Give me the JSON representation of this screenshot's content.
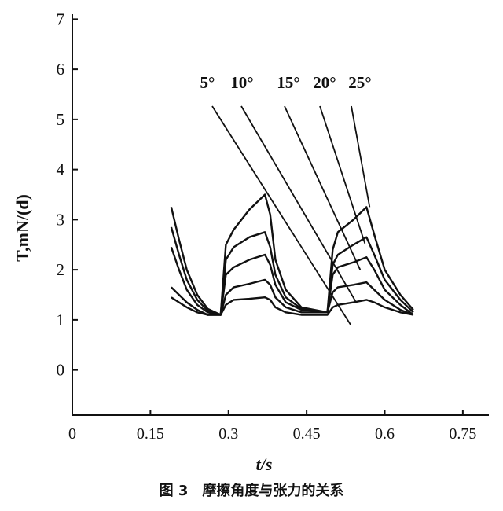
{
  "caption": "图 3　摩擦角度与张力的关系",
  "chart_data": {
    "type": "line",
    "xlabel": "t/s",
    "ylabel": "T,mN/(d)",
    "xlim": [
      0,
      0.8
    ],
    "ylim": [
      -0.9,
      7.1
    ],
    "xticks": [
      "0",
      "0.15",
      "0.3",
      "0.45",
      "0.6",
      "0.75"
    ],
    "xtick_values": [
      0,
      0.15,
      0.3,
      0.45,
      0.6,
      0.75
    ],
    "yticks": [
      "0",
      "1",
      "2",
      "3",
      "4",
      "5",
      "6",
      "7"
    ],
    "ytick_values": [
      0,
      1,
      2,
      3,
      4,
      5,
      6,
      7
    ],
    "annotations": [
      "5°",
      "10°",
      "15°",
      "20°",
      "25°"
    ],
    "series": [
      {
        "name": "5°",
        "x": [
          0.19,
          0.205,
          0.22,
          0.24,
          0.26,
          0.285,
          0.295,
          0.31,
          0.34,
          0.37,
          0.38,
          0.39,
          0.41,
          0.44,
          0.49,
          0.5,
          0.51,
          0.54,
          0.565,
          0.58,
          0.6,
          0.63,
          0.655
        ],
        "y": [
          1.45,
          1.35,
          1.25,
          1.15,
          1.1,
          1.1,
          1.3,
          1.4,
          1.42,
          1.45,
          1.4,
          1.25,
          1.15,
          1.1,
          1.1,
          1.25,
          1.3,
          1.35,
          1.4,
          1.35,
          1.25,
          1.15,
          1.1
        ]
      },
      {
        "name": "10°",
        "x": [
          0.19,
          0.205,
          0.22,
          0.24,
          0.26,
          0.285,
          0.295,
          0.31,
          0.34,
          0.37,
          0.38,
          0.39,
          0.41,
          0.44,
          0.49,
          0.5,
          0.51,
          0.54,
          0.565,
          0.58,
          0.6,
          0.63,
          0.655
        ],
        "y": [
          1.65,
          1.5,
          1.35,
          1.2,
          1.1,
          1.1,
          1.5,
          1.65,
          1.72,
          1.8,
          1.7,
          1.45,
          1.25,
          1.15,
          1.15,
          1.55,
          1.65,
          1.7,
          1.75,
          1.6,
          1.4,
          1.2,
          1.1
        ]
      },
      {
        "name": "15°",
        "x": [
          0.19,
          0.205,
          0.22,
          0.24,
          0.26,
          0.285,
          0.295,
          0.31,
          0.34,
          0.37,
          0.38,
          0.39,
          0.41,
          0.44,
          0.49,
          0.5,
          0.51,
          0.54,
          0.565,
          0.58,
          0.6,
          0.63,
          0.655
        ],
        "y": [
          2.45,
          2.0,
          1.6,
          1.3,
          1.15,
          1.1,
          1.9,
          2.05,
          2.2,
          2.3,
          2.1,
          1.7,
          1.35,
          1.2,
          1.15,
          1.9,
          2.05,
          2.15,
          2.25,
          2.0,
          1.6,
          1.3,
          1.1
        ]
      },
      {
        "name": "20°",
        "x": [
          0.19,
          0.205,
          0.22,
          0.24,
          0.26,
          0.285,
          0.295,
          0.31,
          0.34,
          0.37,
          0.38,
          0.39,
          0.41,
          0.44,
          0.49,
          0.5,
          0.51,
          0.54,
          0.565,
          0.58,
          0.6,
          0.63,
          0.655
        ],
        "y": [
          2.85,
          2.3,
          1.8,
          1.4,
          1.18,
          1.1,
          2.2,
          2.45,
          2.65,
          2.75,
          2.45,
          1.9,
          1.45,
          1.22,
          1.15,
          2.1,
          2.3,
          2.5,
          2.65,
          2.3,
          1.8,
          1.4,
          1.15
        ]
      },
      {
        "name": "25°",
        "x": [
          0.19,
          0.205,
          0.22,
          0.24,
          0.26,
          0.285,
          0.295,
          0.31,
          0.34,
          0.37,
          0.38,
          0.39,
          0.41,
          0.44,
          0.49,
          0.5,
          0.51,
          0.54,
          0.565,
          0.58,
          0.6,
          0.63,
          0.655
        ],
        "y": [
          3.25,
          2.6,
          2.0,
          1.5,
          1.22,
          1.1,
          2.5,
          2.8,
          3.2,
          3.5,
          3.1,
          2.2,
          1.6,
          1.25,
          1.15,
          2.4,
          2.75,
          3.0,
          3.25,
          2.7,
          2.0,
          1.5,
          1.2
        ]
      }
    ]
  }
}
